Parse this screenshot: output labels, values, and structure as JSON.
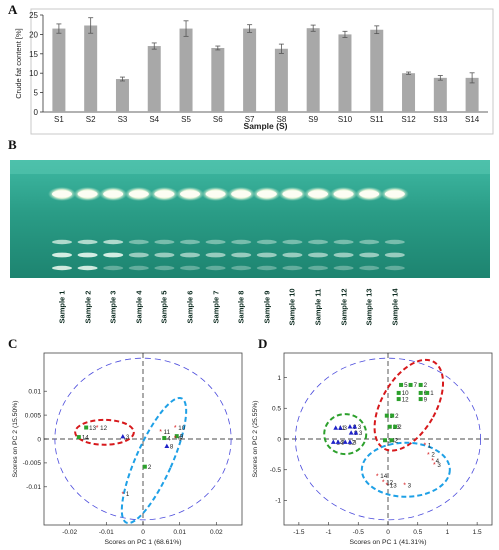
{
  "panels": {
    "a": "A",
    "b": "B",
    "c": "C",
    "d": "D"
  },
  "colors": {
    "bar": "#a8a8a8",
    "red_group": "#d7191c",
    "cyan_group": "#1ea0e6",
    "green_group": "#2ca02c",
    "blue_group": "#1e22c8",
    "outer_circle": "#4b4bdc"
  },
  "chart_data": [
    {
      "type": "bar",
      "categories": [
        "S1",
        "S2",
        "S3",
        "S4",
        "S5",
        "S6",
        "S7",
        "S8",
        "S9",
        "S10",
        "S11",
        "S12",
        "S13",
        "S14"
      ],
      "values": [
        21.5,
        22.3,
        8.5,
        17.0,
        21.5,
        16.5,
        21.5,
        16.3,
        21.6,
        20.0,
        21.2,
        10.0,
        8.8,
        8.8
      ],
      "errors": [
        1.2,
        2.0,
        0.5,
        0.8,
        2.0,
        0.5,
        1.0,
        1.2,
        0.8,
        0.8,
        1.0,
        0.3,
        0.6,
        1.3
      ],
      "xlabel": "Sample (S)",
      "ylabel": "Crude fat content [%]",
      "ylim": [
        0,
        25
      ],
      "yticks": [
        0,
        5,
        10,
        15,
        20,
        25
      ]
    },
    {
      "type": "scatter",
      "xlabel": "Scores on PC 1 (68.61%)",
      "ylabel": "Scores on PC 2 (15.50%)",
      "xlim": [
        -0.027,
        0.027
      ],
      "ylim": [
        -0.018,
        0.018
      ],
      "xticks": [
        -0.02,
        -0.01,
        0,
        0.01,
        0.02
      ],
      "xtick_labels": [
        "-0.02",
        "-0.01",
        "0",
        "0.01",
        "0.02"
      ],
      "yticks": [
        0.01,
        0.005,
        0,
        -0.005,
        -0.01
      ],
      "ytick_labels": [
        "0.01",
        "0.005",
        "0",
        "-0.005",
        "-0.01"
      ],
      "points": [
        {
          "label": "13",
          "x": -0.0155,
          "y": 0.0024,
          "color": "green"
        },
        {
          "label": "12",
          "x": -0.0125,
          "y": 0.0024,
          "color": "red"
        },
        {
          "label": "14",
          "x": -0.0175,
          "y": 0.0004,
          "color": "green"
        },
        {
          "label": "3",
          "x": -0.0055,
          "y": 0.0005,
          "color": "blue"
        },
        {
          "label": "10",
          "x": 0.0088,
          "y": 0.0024,
          "color": "red"
        },
        {
          "label": "11",
          "x": 0.0048,
          "y": 0.0015,
          "color": "red"
        },
        {
          "label": "9",
          "x": 0.0092,
          "y": 0.0006,
          "color": "green"
        },
        {
          "label": "4",
          "x": 0.0058,
          "y": 0.0002,
          "color": "green"
        },
        {
          "label": "6",
          "x": 0.0088,
          "y": 0.0002,
          "color": "red"
        },
        {
          "label": "8",
          "x": 0.0065,
          "y": -0.0015,
          "color": "blue"
        },
        {
          "label": "2",
          "x": 0.0005,
          "y": -0.0058,
          "color": "green"
        },
        {
          "label": "1",
          "x": -0.0055,
          "y": -0.0115,
          "color": "red"
        }
      ],
      "tick_labels_text": [
        "13",
        "12",
        "14",
        "3",
        "10",
        "11",
        "9",
        "4",
        "6",
        "8",
        "2",
        "1"
      ]
    },
    {
      "type": "scatter",
      "xlabel": "Scores on PC 1 (41.31%)",
      "ylabel": "Scores on PC 2 (25.55%)",
      "xlim": [
        -1.75,
        1.75
      ],
      "ylim": [
        -1.4,
        1.4
      ],
      "xticks": [
        -1.5,
        -1,
        -0.5,
        0,
        0.5,
        1,
        1.5
      ],
      "xtick_labels": [
        "-1.5",
        "-1",
        "-0.5",
        "0",
        "0.5",
        "1",
        "1.5"
      ],
      "yticks": [
        1,
        0.5,
        0,
        -0.5,
        -1
      ],
      "ytick_labels": [
        "1",
        "0.5",
        "0",
        "-0.5",
        "-1"
      ],
      "points": [
        {
          "label": "5",
          "x": 0.22,
          "y": 0.88,
          "color": "green"
        },
        {
          "label": "7",
          "x": 0.38,
          "y": 0.88,
          "color": "green"
        },
        {
          "label": "2",
          "x": 0.55,
          "y": 0.88,
          "color": "green"
        },
        {
          "label": "10",
          "x": 0.18,
          "y": 0.75,
          "color": "green"
        },
        {
          "label": "6",
          "x": 0.55,
          "y": 0.75,
          "color": "green"
        },
        {
          "label": "1",
          "x": 0.66,
          "y": 0.75,
          "color": "green"
        },
        {
          "label": "12",
          "x": 0.18,
          "y": 0.65,
          "color": "green"
        },
        {
          "label": "9",
          "x": 0.55,
          "y": 0.65,
          "color": "green"
        },
        {
          "label": "3",
          "x": -0.02,
          "y": 0.38,
          "color": "green"
        },
        {
          "label": "2",
          "x": 0.07,
          "y": 0.38,
          "color": "green"
        },
        {
          "label": "13",
          "x": 0.03,
          "y": 0.2,
          "color": "green"
        },
        {
          "label": "2",
          "x": 0.12,
          "y": 0.2,
          "color": "green"
        },
        {
          "label": "14",
          "x": -0.05,
          "y": -0.02,
          "color": "green"
        },
        {
          "label": "2",
          "x": 0.06,
          "y": -0.02,
          "color": "green"
        },
        {
          "label": "11",
          "x": -0.88,
          "y": 0.18,
          "color": "blue"
        },
        {
          "label": "3",
          "x": -0.8,
          "y": 0.18,
          "color": "blue"
        },
        {
          "label": "8",
          "x": -0.64,
          "y": 0.2,
          "color": "blue"
        },
        {
          "label": "3",
          "x": -0.56,
          "y": 0.2,
          "color": "blue"
        },
        {
          "label": "9",
          "x": -0.62,
          "y": 0.1,
          "color": "blue"
        },
        {
          "label": "3",
          "x": -0.54,
          "y": 0.1,
          "color": "blue"
        },
        {
          "label": "14",
          "x": -0.92,
          "y": -0.05,
          "color": "blue"
        },
        {
          "label": "3",
          "x": -0.84,
          "y": -0.05,
          "color": "blue"
        },
        {
          "label": "12",
          "x": -0.72,
          "y": -0.05,
          "color": "blue"
        },
        {
          "label": "3",
          "x": -0.64,
          "y": -0.05,
          "color": "blue"
        },
        {
          "label": "1",
          "x": 0.62,
          "y": -0.1,
          "color": "red"
        },
        {
          "label": "2",
          "x": 0.68,
          "y": -0.25,
          "color": "red"
        },
        {
          "label": "4",
          "x": 0.75,
          "y": -0.35,
          "color": "red"
        },
        {
          "label": "3",
          "x": 0.78,
          "y": -0.42,
          "color": "red"
        },
        {
          "label": "14",
          "x": -0.18,
          "y": -0.6,
          "color": "red"
        },
        {
          "label": "12",
          "x": -0.08,
          "y": -0.7,
          "color": "red"
        },
        {
          "label": "13",
          "x": -0.02,
          "y": -0.75,
          "color": "red"
        },
        {
          "label": "3",
          "x": 0.28,
          "y": -0.75,
          "color": "red"
        }
      ]
    }
  ],
  "gel": {
    "lanes": [
      "Sample 1",
      "Sample 2",
      "Sample 3",
      "Sample 4",
      "Sample 5",
      "Sample 6",
      "Sample 7",
      "Sample 8",
      "Sample 9",
      "Sample 10",
      "Sample 11",
      "Sample 12",
      "Sample 13",
      "Sample 14"
    ]
  }
}
